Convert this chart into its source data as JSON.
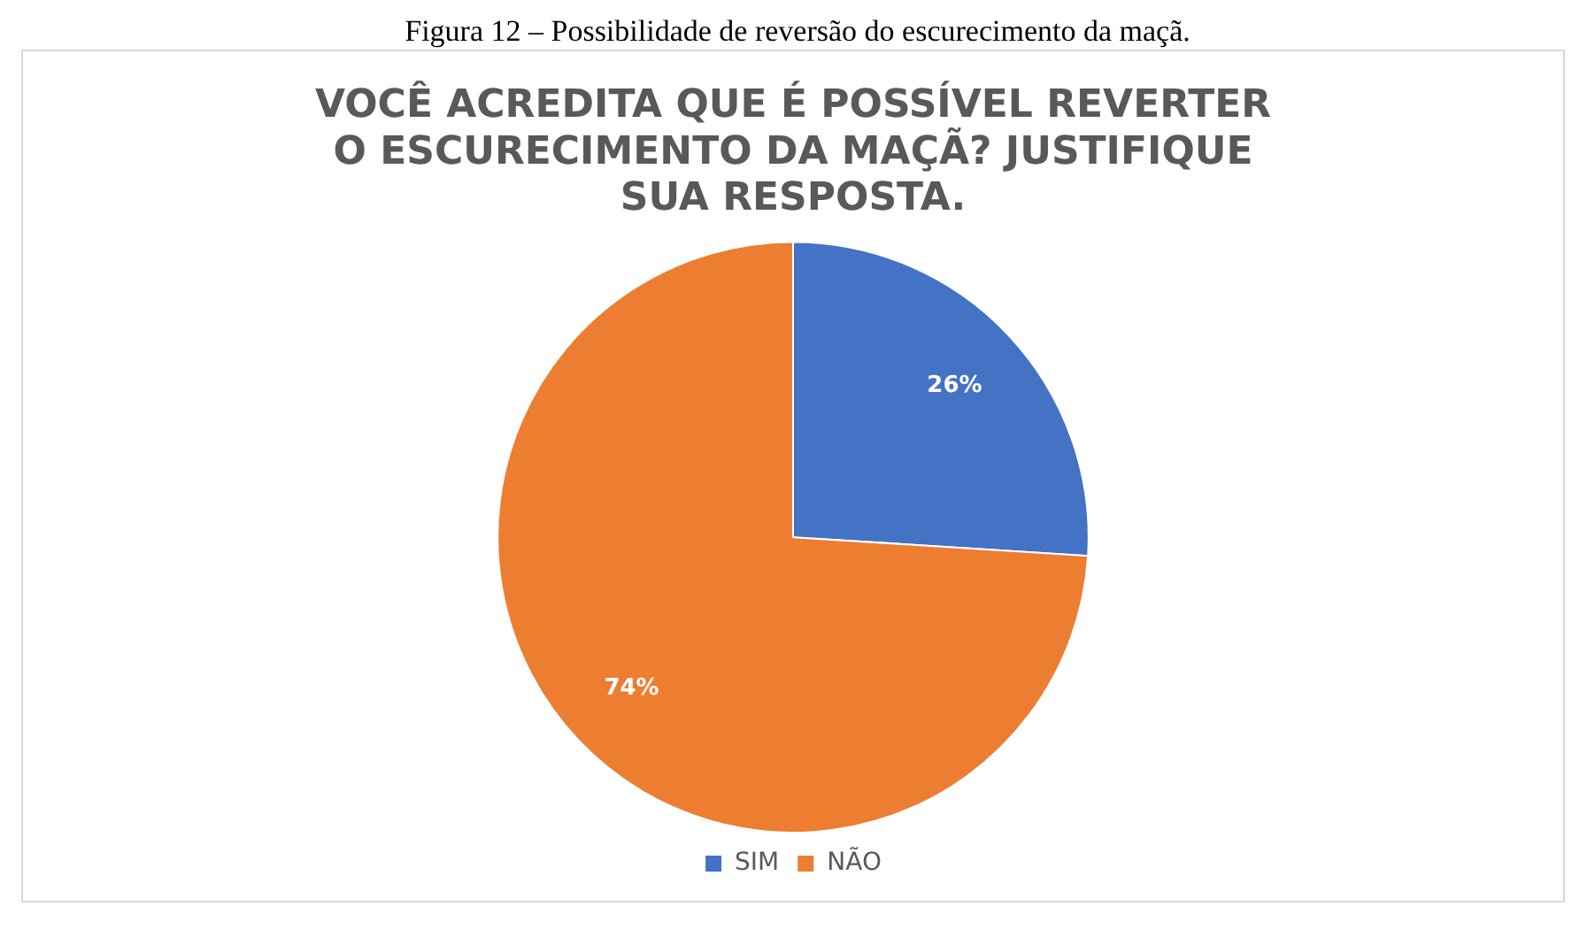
{
  "chart_data": {
    "type": "pie",
    "title": "VOCÊ ACREDITA QUE É POSSÍVEL REVERTER O ESCURECIMENTO DA MAÇÃ? JUSTIFIQUE SUA RESPOSTA.",
    "annotations": [
      "Figura 12 – Possibilidade de reversão do escurecimento da maçã."
    ],
    "categories": [
      "SIM",
      "NÃO"
    ],
    "values": [
      26,
      74
    ],
    "colors": [
      "#4472c4",
      "#ed7d31"
    ],
    "value_labels": [
      "26%",
      "74%"
    ],
    "legend": "bottom"
  }
}
